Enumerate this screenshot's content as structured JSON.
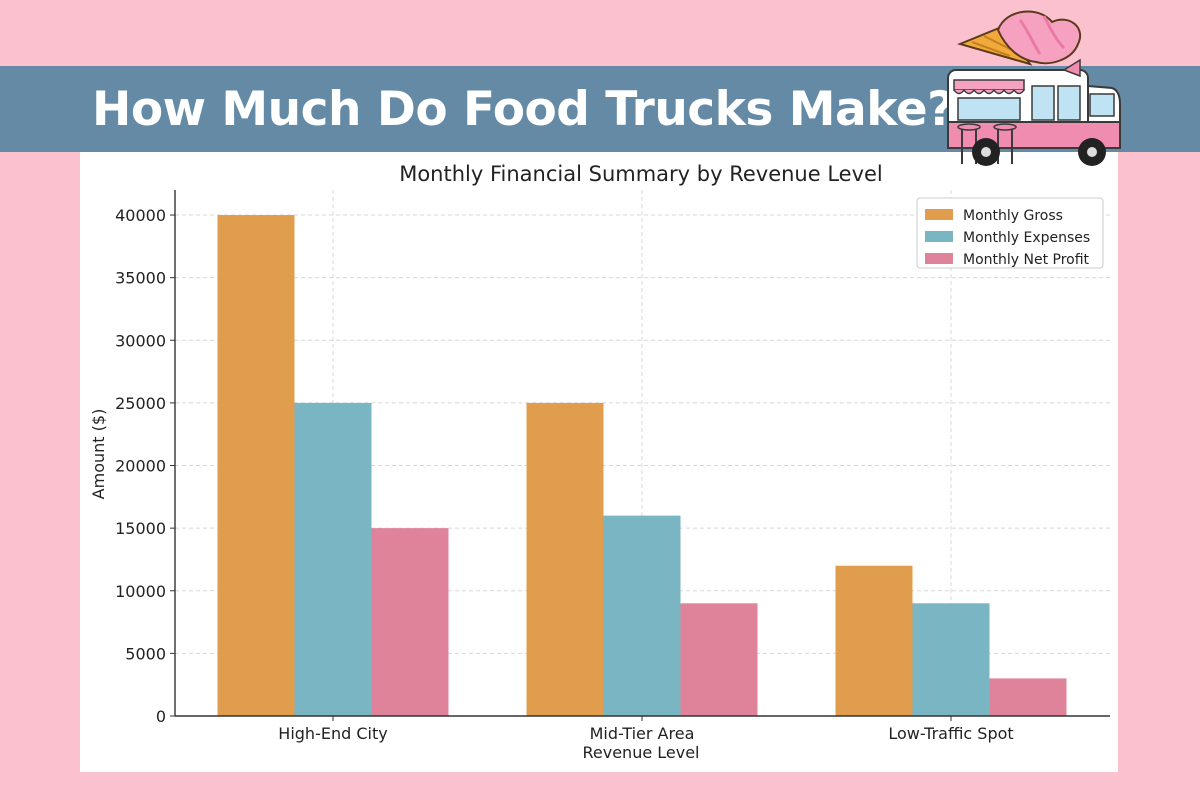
{
  "banner": {
    "title": "How Much Do Food Trucks Make?"
  },
  "illustration": {
    "name": "ice-cream-food-truck"
  },
  "colors": {
    "background": "#fcc1cf",
    "banner": "#648aa6",
    "gross": "#e09d4d",
    "expenses": "#7ab5c4",
    "profit": "#de8399"
  },
  "chart_data": {
    "type": "bar",
    "title": "Monthly Financial Summary by Revenue Level",
    "xlabel": "Revenue Level",
    "ylabel": "Amount ($)",
    "categories": [
      "High-End City",
      "Mid-Tier Area",
      "Low-Traffic Spot"
    ],
    "series": [
      {
        "name": "Monthly Gross",
        "color": "#e09d4d",
        "values": [
          40000,
          25000,
          12000
        ]
      },
      {
        "name": "Monthly Expenses",
        "color": "#7ab5c4",
        "values": [
          25000,
          16000,
          9000
        ]
      },
      {
        "name": "Monthly Net Profit",
        "color": "#de8399",
        "values": [
          15000,
          9000,
          3000
        ]
      }
    ],
    "ylim": [
      0,
      42000
    ],
    "yticks": [
      0,
      5000,
      10000,
      15000,
      20000,
      25000,
      30000,
      35000,
      40000
    ],
    "grid": true,
    "legend_position": "top-right"
  }
}
